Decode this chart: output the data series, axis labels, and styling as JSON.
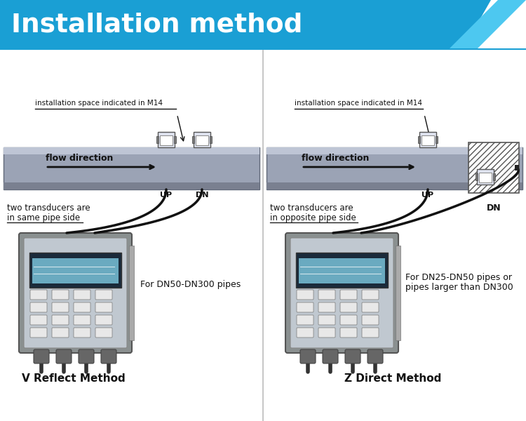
{
  "title": "Installation method",
  "title_bg_color": "#1a9fd4",
  "title_accent_color": "#4dc8f0",
  "title_text_color": "#ffffff",
  "bg_color": "#ffffff",
  "pipe_color": "#9ba3b5",
  "pipe_highlight": "#bec5d5",
  "pipe_shadow": "#7a8090",
  "transducer_fill": "#e0e4f0",
  "cable_color": "#111111",
  "meter_body": "#aeb5c5",
  "meter_dark": "#555",
  "meter_screen": "#6aaac0",
  "hatch_color": "#555555",
  "divider_color": "#bbbbbb",
  "text_color": "#111111",
  "left_title": "V Reflect Method",
  "right_title": "Z Direct Method",
  "left_desc": "For DN50-DN300 pipes",
  "right_desc1": "For DN25-DN50 pipes or",
  "right_desc2": "pipes larger than DN300",
  "left_note1": "two transducers are",
  "left_note2": "in same pipe side",
  "right_note1": "two transducers are",
  "right_note2": "in opposite pipe side",
  "space_label": "installation space indicated in M14",
  "flow_label": "flow direction"
}
